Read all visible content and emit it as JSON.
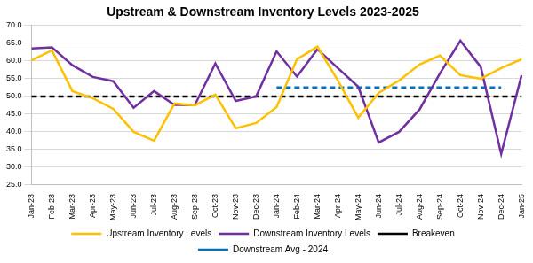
{
  "chart_data": {
    "type": "line",
    "title": "Upstream & Downstream Inventory Levels 2023-2025",
    "categories": [
      "Jan-23",
      "Feb-23",
      "Mar-23",
      "Apr-23",
      "May-23",
      "Jun-23",
      "Jul-23",
      "Aug-23",
      "Sep-23",
      "Oct-23",
      "Nov-23",
      "Dec-23",
      "Jan-24",
      "Feb-24",
      "Mar-24",
      "Apr-24",
      "May-24",
      "Jun-24",
      "Jul-24",
      "Aug-24",
      "Sep-24",
      "Oct-24",
      "Nov-24",
      "Dec-24",
      "Jan-25"
    ],
    "series": [
      {
        "name": "Upstream Inventory Levels",
        "color": "#FFC000",
        "line_style": "solid",
        "values": [
          60.2,
          63.0,
          51.5,
          49.5,
          46.5,
          40.0,
          37.5,
          48.0,
          47.5,
          50.5,
          41.0,
          42.5,
          47.0,
          60.5,
          64.0,
          54.5,
          44.0,
          51.0,
          54.5,
          59.0,
          61.5,
          56.0,
          55.0,
          58.0,
          60.5
        ]
      },
      {
        "name": "Downstream Inventory Levels",
        "color": "#7030A0",
        "line_style": "solid",
        "values": [
          63.5,
          63.8,
          58.8,
          55.5,
          54.3,
          46.8,
          51.5,
          47.6,
          47.6,
          59.3,
          48.7,
          50.0,
          62.7,
          55.6,
          63.3,
          58.0,
          52.7,
          37.0,
          40.0,
          46.3,
          56.5,
          65.7,
          58.3,
          33.8,
          56.0
        ]
      },
      {
        "name": "Breakeven",
        "color": "#000000",
        "line_style": "dashed",
        "values": [
          50,
          50,
          50,
          50,
          50,
          50,
          50,
          50,
          50,
          50,
          50,
          50,
          50,
          50,
          50,
          50,
          50,
          50,
          50,
          50,
          50,
          50,
          50,
          50,
          50
        ]
      },
      {
        "name": "Downstream Avg - 2024",
        "color": "#0070C0",
        "line_style": "dashed",
        "values": [
          null,
          null,
          null,
          null,
          null,
          null,
          null,
          null,
          null,
          null,
          null,
          null,
          52.5,
          52.5,
          52.5,
          52.5,
          52.5,
          52.5,
          52.5,
          52.5,
          52.5,
          52.5,
          52.5,
          52.5,
          null
        ]
      }
    ],
    "ylim": [
      25,
      70
    ],
    "yticks": [
      {
        "value": 25,
        "label": "25.0"
      },
      {
        "value": 30,
        "label": "30.0"
      },
      {
        "value": 35,
        "label": "35.0"
      },
      {
        "value": 40,
        "label": "40.0"
      },
      {
        "value": 45,
        "label": "45.0"
      },
      {
        "value": 50,
        "label": "50.0"
      },
      {
        "value": 55,
        "label": "55.0"
      },
      {
        "value": 60,
        "label": "60.0"
      },
      {
        "value": 65,
        "label": "65.0"
      },
      {
        "value": 70,
        "label": "70.0"
      }
    ],
    "grid": true,
    "legend": "bottom"
  }
}
